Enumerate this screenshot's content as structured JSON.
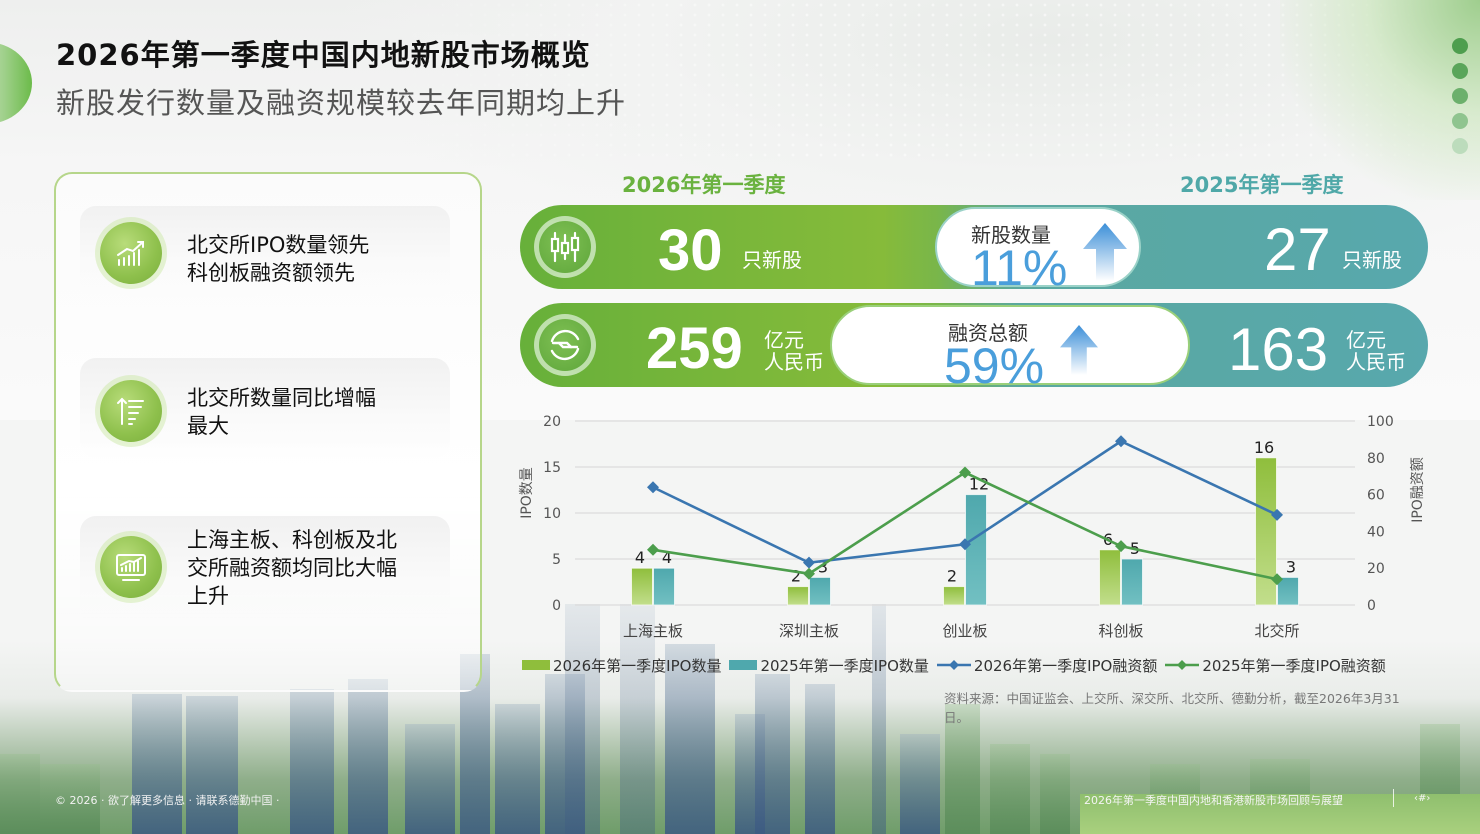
{
  "header": {
    "title": "2026年第一季度中国内地新股市场概览",
    "subtitle": "新股发行数量及融资规模较去年同期均上升"
  },
  "nav_dots": {
    "colors": [
      "#4e9e4e",
      "#5aa55a",
      "#6cb06c",
      "#8fc48f",
      "#bcdcbc"
    ]
  },
  "highlights": [
    {
      "icon": "growth-chart-icon",
      "lines": [
        "北交所IPO数量领先",
        "科创板融资额领先"
      ]
    },
    {
      "icon": "sort-ascending-icon",
      "lines": [
        "北交所数量同比增幅",
        "最大"
      ]
    },
    {
      "icon": "monitor-chart-icon",
      "lines": [
        "上海主板、科创板及北",
        "交所融资额均同比大幅",
        "上升"
      ]
    }
  ],
  "comparison": {
    "current_label": "2026年第一季度",
    "previous_label": "2025年第一季度",
    "colors": {
      "current": "#6ab23f",
      "previous": "#5aa8ad",
      "pct": "#4a9edb"
    },
    "rows": [
      {
        "icon": "candlestick-icon",
        "current_value": "30",
        "current_unit": "只新股",
        "metric_label": "新股数量",
        "change_pct": "11%",
        "previous_value": "27",
        "previous_unit": "只新股"
      },
      {
        "icon": "currency-exchange-icon",
        "current_value": "259",
        "current_unit_line1": "亿元",
        "current_unit_line2": "人民币",
        "metric_label": "融资总额",
        "change_pct": "59%",
        "previous_value": "163",
        "previous_unit_line1": "亿元",
        "previous_unit_line2": "人民币"
      }
    ]
  },
  "chart_data": {
    "type": "bar",
    "title": "",
    "categories": [
      "上海主板",
      "深圳主板",
      "创业板",
      "科创板",
      "北交所"
    ],
    "series": [
      {
        "name": "2026年第一季度IPO数量",
        "kind": "bar",
        "axis": "left",
        "color": "#8fbe3c",
        "values": [
          4,
          2,
          2,
          6,
          16
        ]
      },
      {
        "name": "2025年第一季度IPO数量",
        "kind": "bar",
        "axis": "left",
        "color": "#4fa8ad",
        "values": [
          4,
          3,
          12,
          5,
          3
        ]
      },
      {
        "name": "2026年第一季度IPO融资额",
        "kind": "line",
        "axis": "right",
        "color": "#3a76b0",
        "values": [
          64,
          23,
          33,
          89,
          49
        ]
      },
      {
        "name": "2025年第一季度IPO融资额",
        "kind": "line",
        "axis": "right",
        "color": "#4c9e4c",
        "values": [
          30,
          17,
          72,
          32,
          14
        ]
      }
    ],
    "ylabel": "IPO数量",
    "ylabel_right": "IPO融资额",
    "ylim": [
      0,
      20
    ],
    "ylim_right": [
      0,
      100
    ],
    "yticks": [
      "0",
      "5",
      "10",
      "15",
      "20"
    ],
    "yticks_right": [
      "0",
      "20",
      "40",
      "60",
      "80",
      "100"
    ],
    "grid": true,
    "legend_position": "bottom"
  },
  "source_note": "资料来源：中国证监会、上交所、深交所、北交所、德勤分析，截至2026年3月31日。",
  "footer": {
    "left": "© 2026 · 欲了解更多信息 · 请联系德勤中国 ·",
    "right": "2026年第一季度中国内地和香港新股市场回顾与展望",
    "page": "‹#›"
  }
}
